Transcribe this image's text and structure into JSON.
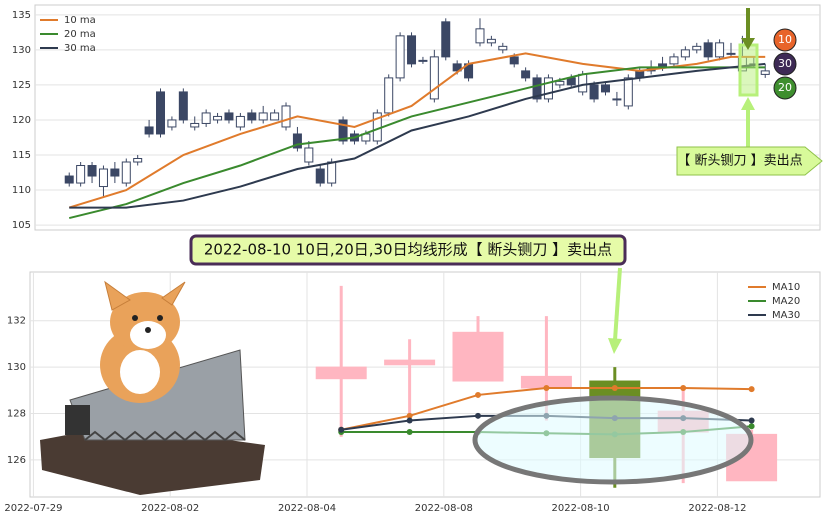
{
  "chart_data": [
    {
      "type": "candlestick",
      "xlim": [
        -3,
        65.8
      ],
      "ylim": [
        104.3,
        136.4
      ],
      "yticks": [
        105,
        110,
        115,
        120,
        125,
        130,
        135
      ],
      "grid": true,
      "up_color": "#ffffff",
      "down_color": "#3b4764",
      "edge_color": "#3b4764",
      "candles": {
        "open": [
          112,
          111,
          113.5,
          110.5,
          113,
          111,
          114,
          119,
          124,
          119,
          124,
          119,
          119.5,
          120,
          121,
          119,
          121,
          120,
          120,
          119,
          118,
          114,
          113,
          111,
          120,
          118,
          117,
          117,
          121,
          126,
          132,
          128.5,
          123,
          134,
          128,
          128,
          131,
          131,
          130,
          129,
          127,
          126,
          123,
          125,
          126,
          124,
          125,
          125,
          123,
          122,
          127,
          127.5,
          128,
          128,
          129,
          130,
          131,
          129,
          129.5,
          127,
          128,
          126.5
        ],
        "close": [
          111,
          113.5,
          112,
          113,
          112,
          114,
          114.5,
          118,
          118,
          120,
          120,
          119.5,
          121,
          120.5,
          120,
          120.5,
          120,
          121,
          121,
          122,
          116,
          116,
          111,
          114,
          117,
          117,
          118,
          121,
          126,
          132,
          128,
          128.5,
          129,
          129,
          127,
          126,
          133,
          131.5,
          130.5,
          128,
          126,
          123,
          126,
          125.5,
          125,
          126.5,
          123,
          124,
          123,
          126,
          126,
          127,
          127.5,
          129,
          130,
          130.5,
          129,
          131,
          129.5,
          129,
          128,
          127
        ],
        "high": [
          112.5,
          114,
          114,
          113.5,
          114,
          114.5,
          115,
          120,
          124.5,
          120.5,
          124.5,
          120.5,
          121.5,
          121,
          121.5,
          121,
          121.5,
          122,
          121.5,
          122.5,
          119,
          117,
          113.5,
          114.5,
          120.5,
          118.5,
          118.5,
          121.5,
          126.5,
          132.5,
          132.5,
          129,
          130,
          134.5,
          128.5,
          128.5,
          134.5,
          132,
          131,
          129.5,
          127.5,
          126.5,
          126.5,
          126,
          126.5,
          127,
          125.5,
          125.5,
          124,
          126.5,
          127.5,
          128.5,
          129,
          129.5,
          130.5,
          131,
          131.5,
          131.5,
          131,
          132,
          129,
          128
        ],
        "low": [
          110.5,
          110.5,
          111,
          109,
          111,
          110.5,
          113.5,
          117.5,
          117.5,
          118.5,
          119.5,
          118.5,
          119,
          119.5,
          119.5,
          118.5,
          119.5,
          119.5,
          120,
          118.5,
          115.5,
          113.5,
          110.5,
          110.5,
          116.5,
          116.5,
          116.5,
          116.5,
          120.5,
          125.5,
          127.5,
          128,
          122.5,
          128.5,
          126.5,
          125.5,
          130.5,
          130.5,
          129.5,
          127.5,
          125.5,
          122.5,
          122.5,
          124.5,
          124.5,
          123.5,
          122.5,
          123.5,
          122,
          121.5,
          125.5,
          126.5,
          127,
          127.5,
          128.5,
          129.5,
          128.5,
          128.5,
          129,
          127,
          127.5,
          126
        ]
      },
      "series": [
        {
          "name": "10 ma",
          "color": "#e07b2c",
          "x": [
            0,
            5,
            10,
            15,
            20,
            25,
            30,
            35,
            40,
            45,
            50,
            55,
            58,
            61
          ],
          "values": [
            107.5,
            110,
            115,
            118,
            120.5,
            119,
            122,
            128,
            129.5,
            128,
            127,
            128,
            129,
            129
          ]
        },
        {
          "name": "20 ma",
          "color": "#3a8a2e",
          "x": [
            0,
            5,
            10,
            15,
            20,
            25,
            30,
            35,
            40,
            45,
            50,
            55,
            61
          ],
          "values": [
            106,
            108,
            111,
            113.5,
            116.5,
            117.5,
            120.5,
            122.5,
            124.5,
            126.5,
            127.5,
            127.5,
            127.5
          ]
        },
        {
          "name": "30 ma",
          "color": "#2e3a4f",
          "x": [
            0,
            5,
            10,
            15,
            20,
            25,
            30,
            35,
            40,
            45,
            50,
            55,
            61
          ],
          "values": [
            107.5,
            107.5,
            108.5,
            110.5,
            113,
            114.5,
            118.5,
            120.5,
            123,
            125,
            126,
            127,
            128
          ]
        }
      ],
      "legend": "upper left",
      "annotation": "【 断头铡刀 】卖出点",
      "badges": [
        {
          "label": "10",
          "color": "#e8642a"
        },
        {
          "label": "30",
          "color": "#3d2a55"
        },
        {
          "label": "20",
          "color": "#3e8e2e"
        }
      ]
    },
    {
      "type": "candlestick",
      "title": "2022-08-10 10日,20日,30日均线形成【 断头铡刀 】卖出点",
      "xlim": [
        -4.55,
        7.0
      ],
      "ylim": [
        124.4,
        134.1
      ],
      "yticks": [
        126,
        128,
        130,
        132
      ],
      "grid": true,
      "xticks": [
        {
          "value": -4.5,
          "label": "2022-07-29"
        },
        {
          "value": -2.5,
          "label": "2022-08-02"
        },
        {
          "value": -0.5,
          "label": "2022-08-04"
        },
        {
          "value": 1.5,
          "label": "2022-08-08"
        },
        {
          "value": 3.5,
          "label": "2022-08-10"
        },
        {
          "value": 5.5,
          "label": "2022-08-12"
        }
      ],
      "up_color": "#ffb6c1",
      "down_color": "#6b8e23",
      "edge_color": "#ffb6c1",
      "candles": {
        "open": [
          129.5,
          130.1,
          129.4,
          129.1,
          129.4,
          127.2,
          125.1
        ],
        "close": [
          130,
          130.3,
          131.5,
          129.6,
          126.1,
          128.1,
          127.1
        ],
        "high": [
          133.5,
          131.2,
          132.2,
          132.2,
          130,
          129,
          127.3
        ],
        "low": [
          127,
          128,
          129.4,
          127.7,
          124.8,
          125,
          125.1
        ]
      },
      "series": [
        {
          "name": "MA10",
          "color": "#e07b2c",
          "x": [
            0,
            1,
            2,
            3,
            4,
            5,
            6
          ],
          "values": [
            127.3,
            127.9,
            128.8,
            129.1,
            129.1,
            129.1,
            129.05
          ]
        },
        {
          "name": "MA20",
          "color": "#3a8a2e",
          "x": [
            0,
            1,
            2,
            3,
            4,
            5,
            6
          ],
          "values": [
            127.2,
            127.2,
            127.2,
            127.15,
            127.1,
            127.2,
            127.45
          ]
        },
        {
          "name": "MA30",
          "color": "#2e3a4f",
          "x": [
            0,
            1,
            2,
            3,
            4,
            5,
            6
          ],
          "values": [
            127.3,
            127.7,
            127.9,
            127.9,
            127.8,
            127.8,
            127.7
          ]
        }
      ],
      "legend": "upper right"
    }
  ]
}
